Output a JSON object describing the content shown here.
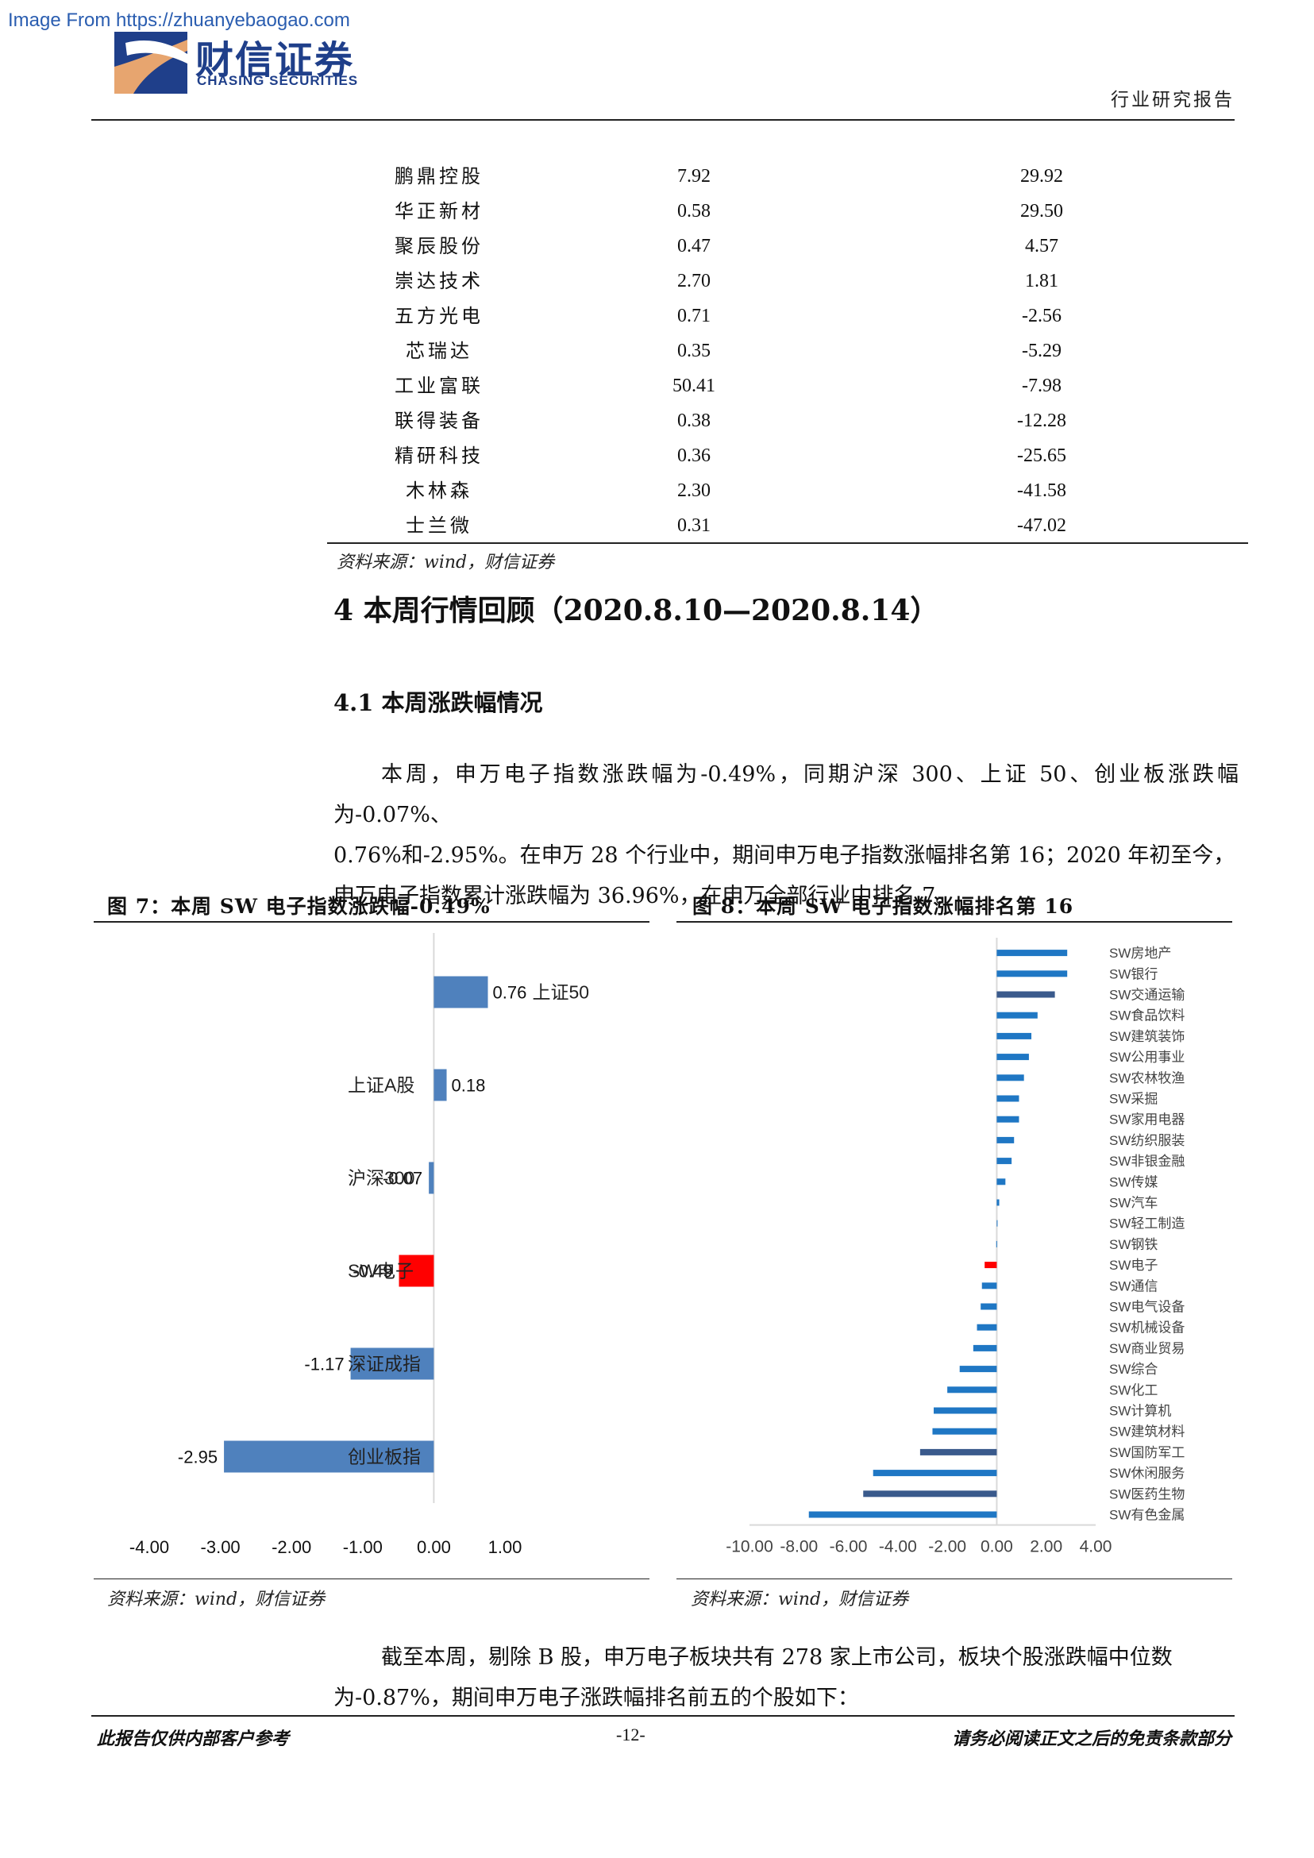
{
  "watermark": "Image From https://zhuanyebaogao.com",
  "header": {
    "logo_cn": "财信证券",
    "logo_en": "CHASING SECURITIES",
    "report_type": "行业研究报告"
  },
  "table": {
    "rows": [
      {
        "name": "鹏鼎控股",
        "v1": "7.92",
        "v2": "29.92"
      },
      {
        "name": "华正新材",
        "v1": "0.58",
        "v2": "29.50"
      },
      {
        "name": "聚辰股份",
        "v1": "0.47",
        "v2": "4.57"
      },
      {
        "name": "崇达技术",
        "v1": "2.70",
        "v2": "1.81"
      },
      {
        "name": "五方光电",
        "v1": "0.71",
        "v2": "-2.56"
      },
      {
        "name": "芯瑞达",
        "v1": "0.35",
        "v2": "-5.29"
      },
      {
        "name": "工业富联",
        "v1": "50.41",
        "v2": "-7.98"
      },
      {
        "name": "联得装备",
        "v1": "0.38",
        "v2": "-12.28"
      },
      {
        "name": "精研科技",
        "v1": "0.36",
        "v2": "-25.65"
      },
      {
        "name": "木林森",
        "v1": "2.30",
        "v2": "-41.58"
      },
      {
        "name": "士兰微",
        "v1": "0.31",
        "v2": "-47.02"
      }
    ],
    "source": "资料来源：wind，财信证券"
  },
  "section": {
    "h1": "4 本周行情回顾（2020.8.10—2020.8.14）",
    "h2": "4.1 本周涨跌幅情况",
    "para1_line1": "本周，申万电子指数涨跌幅为-0.49%，同期沪深 300、上证 50、创业板涨跌幅为-0.07%、",
    "para1_line2": "0.76%和-2.95%。在申万 28 个行业中，期间申万电子指数涨幅排名第 16；2020 年初至今，",
    "para1_line3": "申万电子指数累计涨跌幅为 36.96%，在申万全部行业中排名 7。",
    "para2_line1": "截至本周，剔除 B 股，申万电子板块共有 278 家上市公司，板块个股涨跌幅中位数",
    "para2_line2": "为-0.87%，期间申万电子涨跌幅排名前五的个股如下："
  },
  "fig7": {
    "title": "图 7：本周 SW 电子指数涨跌幅-0.49%",
    "source": "资料来源：wind，财信证券"
  },
  "fig8": {
    "title": "图 8：本周 SW 电子指数涨幅排名第 16",
    "source": "资料来源：wind，财信证券"
  },
  "footer": {
    "left": "此报告仅供内部客户参考",
    "page": "-12-",
    "right": "请务必阅读正文之后的免责条款部分"
  },
  "colors": {
    "bar": "#4f81bd",
    "highlight": "#ff0000",
    "bar8": "#1f77c4",
    "bar8_dark": "#3a5a8c",
    "axis": "#d9d9d9"
  },
  "chart_data": [
    {
      "type": "bar",
      "orientation": "horizontal",
      "categories": [
        "上证50",
        "上证A股",
        "沪深300",
        "SW电子",
        "深证成指",
        "创业板指"
      ],
      "values": [
        0.76,
        0.18,
        -0.07,
        -0.49,
        -1.17,
        -2.95
      ],
      "labels": [
        "0.76",
        "0.18",
        "-0.07",
        "-0.49",
        "-1.17",
        "-2.95"
      ],
      "highlight": "SW电子",
      "xlim": [
        -4,
        1
      ],
      "xticks": [
        "-4.00",
        "-3.00",
        "-2.00",
        "-1.00",
        "0.00",
        "1.00"
      ],
      "title": "",
      "xlabel": "",
      "ylabel": ""
    },
    {
      "type": "bar",
      "orientation": "horizontal",
      "categories": [
        "SW房地产",
        "SW银行",
        "SW交通运输",
        "SW食品饮料",
        "SW建筑装饰",
        "SW公用事业",
        "SW农林牧渔",
        "SW采掘",
        "SW家用电器",
        "SW纺织服装",
        "SW非银金融",
        "SW传媒",
        "SW汽车",
        "SW轻工制造",
        "SW钢铁",
        "SW电子",
        "SW通信",
        "SW电气设备",
        "SW机械设备",
        "SW商业贸易",
        "SW综合",
        "SW化工",
        "SW计算机",
        "SW建筑材料",
        "SW国防军工",
        "SW休闲服务",
        "SW医药生物",
        "SW有色金属"
      ],
      "values": [
        2.85,
        2.85,
        2.35,
        1.65,
        1.4,
        1.3,
        1.1,
        0.9,
        0.9,
        0.7,
        0.6,
        0.35,
        0.1,
        0.02,
        -0.02,
        -0.49,
        -0.6,
        -0.65,
        -0.8,
        -0.95,
        -1.5,
        -2.0,
        -2.55,
        -2.6,
        -3.1,
        -5.0,
        -5.4,
        -7.6
      ],
      "highlight": "SW电子",
      "dark": [
        "SW交通运输",
        "SW国防军工",
        "SW医药生物"
      ],
      "xlim": [
        -10,
        4
      ],
      "xticks": [
        "-10.00",
        "-8.00",
        "-6.00",
        "-4.00",
        "-2.00",
        "0.00",
        "2.00",
        "4.00"
      ],
      "title": "",
      "xlabel": "",
      "ylabel": ""
    }
  ]
}
